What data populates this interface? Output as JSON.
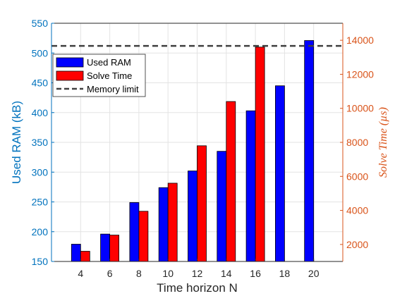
{
  "chart_data": {
    "type": "bar",
    "categories": [
      "4",
      "6",
      "8",
      "10",
      "12",
      "14",
      "16",
      "18",
      "20"
    ],
    "xlabel": "Time horizon N",
    "ylabel_left": "Used RAM (kB)",
    "ylabel_right": "Solve Time (µs)",
    "ylim_left": [
      150,
      550
    ],
    "yticks_left": [
      "150",
      "200",
      "250",
      "300",
      "350",
      "400",
      "450",
      "500",
      "550"
    ],
    "ylim_right": [
      1000,
      15000
    ],
    "yticks_right": [
      "2000",
      "4000",
      "6000",
      "8000",
      "10000",
      "12000",
      "14000"
    ],
    "grid": true,
    "legend_position": "top-left",
    "series": [
      {
        "name": "Used RAM",
        "axis": "left",
        "color": "#0000ff",
        "values": [
          179,
          196,
          249,
          274,
          302,
          335,
          403,
          445,
          521
        ]
      },
      {
        "name": "Solve Time",
        "axis": "right",
        "color": "#ff0000",
        "values": [
          1600,
          2550,
          3950,
          5600,
          7800,
          10400,
          13600,
          null,
          null
        ]
      }
    ],
    "reference_line": {
      "name": "Memory limit",
      "axis": "left",
      "value": 512,
      "color": "#404040",
      "style": "dashed"
    },
    "axis_colors": {
      "left": "#0072bd",
      "right": "#d95319"
    }
  }
}
